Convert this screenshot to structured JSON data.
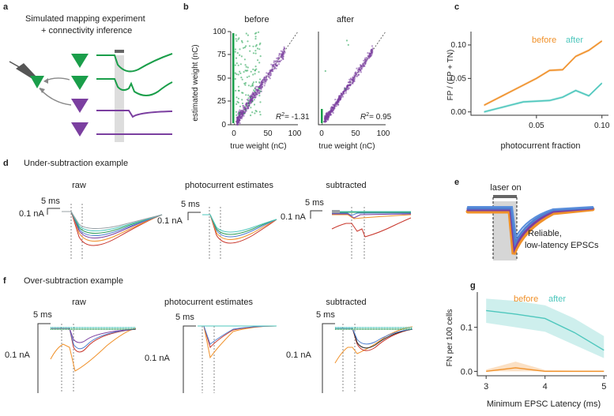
{
  "panels": {
    "a": {
      "label": "a",
      "title_line1": "Simulated mapping experiment",
      "title_line2": "+ connectivity inference",
      "colors": {
        "green": "#1a9e4a",
        "purple": "#7b3fa0",
        "gray": "#888888",
        "stim_bar": "#666666"
      }
    },
    "b": {
      "label": "b",
      "before_title": "before",
      "after_title": "after",
      "ylabel": "estimated weight (nC)",
      "xlabel": "true weight (nC)",
      "r2_before": "= -1.31",
      "r2_after": "= 0.95",
      "ticks": [
        "0",
        "50",
        "100"
      ],
      "yticks": [
        "0",
        "25",
        "50",
        "75",
        "100"
      ]
    },
    "c": {
      "label": "c",
      "legend_before": "before",
      "legend_after": "after",
      "ylabel": "FP / (FP + TN)",
      "xlabel": "photocurrent fraction",
      "xticks": [
        "0.05",
        "0.10"
      ],
      "yticks": [
        "0.00",
        "0.05",
        "0.10"
      ],
      "colors": {
        "before": "#f0912a",
        "after": "#4ec7bd"
      }
    },
    "d": {
      "label": "d",
      "subtitle": "Under-subtraction example",
      "titles": [
        "raw",
        "photocurrent estimates",
        "subtracted"
      ],
      "time_scale": "5 ms",
      "amp_scale": "0.1 nA"
    },
    "e": {
      "label": "e",
      "laser_label": "laser on",
      "caption_line1": "Reliable,",
      "caption_line2": "low-latency EPSCs"
    },
    "f": {
      "label": "f",
      "subtitle": "Over-subtraction example",
      "titles": [
        "raw",
        "photocurrent estimates",
        "subtracted"
      ],
      "time_scale": "5 ms",
      "amp_scale": "0.1 nA"
    },
    "g": {
      "label": "g",
      "legend_before": "before",
      "legend_after": "after",
      "ylabel": "FN per 100 cells",
      "xlabel": "Minimum EPSC Latency (ms)",
      "xticks": [
        "3",
        "4",
        "5"
      ],
      "yticks": [
        "0.0",
        "0.1"
      ]
    }
  },
  "chart_data": [
    {
      "type": "line",
      "panel": "c",
      "xlabel": "photocurrent fraction",
      "ylabel": "FP / (FP + TN)",
      "xlim": [
        0.0,
        0.105
      ],
      "ylim": [
        -0.005,
        0.12
      ],
      "series": [
        {
          "name": "before",
          "x": [
            0.01,
            0.02,
            0.03,
            0.04,
            0.05,
            0.06,
            0.07,
            0.08,
            0.09,
            0.1
          ],
          "values": [
            0.01,
            0.02,
            0.03,
            0.04,
            0.05,
            0.062,
            0.063,
            0.083,
            0.092,
            0.106
          ]
        },
        {
          "name": "after",
          "x": [
            0.01,
            0.02,
            0.03,
            0.04,
            0.05,
            0.06,
            0.07,
            0.08,
            0.09,
            0.1
          ],
          "values": [
            0.0,
            0.005,
            0.01,
            0.015,
            0.016,
            0.017,
            0.022,
            0.032,
            0.024,
            0.043
          ]
        }
      ]
    },
    {
      "type": "line",
      "panel": "g",
      "xlabel": "Minimum EPSC Latency (ms)",
      "ylabel": "FN per 100 cells",
      "xlim": [
        2.85,
        5.05
      ],
      "ylim": [
        -0.01,
        0.18
      ],
      "series": [
        {
          "name": "after",
          "x": [
            3.0,
            3.5,
            4.0,
            4.5,
            5.0
          ],
          "values": [
            0.138,
            0.13,
            0.12,
            0.088,
            0.048
          ],
          "band_low": [
            0.11,
            0.1,
            0.09,
            0.06,
            0.03
          ],
          "band_high": [
            0.165,
            0.16,
            0.15,
            0.12,
            0.08
          ]
        },
        {
          "name": "before",
          "x": [
            3.0,
            3.5,
            4.0,
            4.5,
            5.0
          ],
          "values": [
            0.0,
            0.008,
            0.0,
            0.0,
            0.0
          ],
          "band_low": [
            0.0,
            0.0,
            0.0,
            0.0,
            0.0
          ],
          "band_high": [
            0.004,
            0.022,
            0.003,
            0.002,
            0.002
          ]
        }
      ]
    },
    {
      "type": "scatter",
      "panel": "b-before",
      "xlabel": "true weight (nC)",
      "ylabel": "estimated weight (nC)",
      "xlim": [
        -5,
        100
      ],
      "ylim": [
        0,
        100
      ],
      "series": [
        {
          "name": "connected",
          "color": "#7b3fa0",
          "trend_slope": 1.0,
          "x_range": [
            5,
            80
          ]
        },
        {
          "name": "unconnected",
          "color": "#1a9e4a",
          "x": 0,
          "y_range": [
            2,
            100
          ]
        }
      ]
    },
    {
      "type": "scatter",
      "panel": "b-after",
      "xlabel": "true weight (nC)",
      "ylabel": "estimated weight (nC)",
      "xlim": [
        -5,
        100
      ],
      "ylim": [
        0,
        100
      ],
      "series": [
        {
          "name": "connected",
          "color": "#7b3fa0",
          "trend_slope": 1.0,
          "x_range": [
            5,
            80
          ]
        },
        {
          "name": "unconnected",
          "color": "#1a9e4a",
          "x": 0,
          "y_range": [
            0,
            15
          ]
        }
      ]
    }
  ]
}
